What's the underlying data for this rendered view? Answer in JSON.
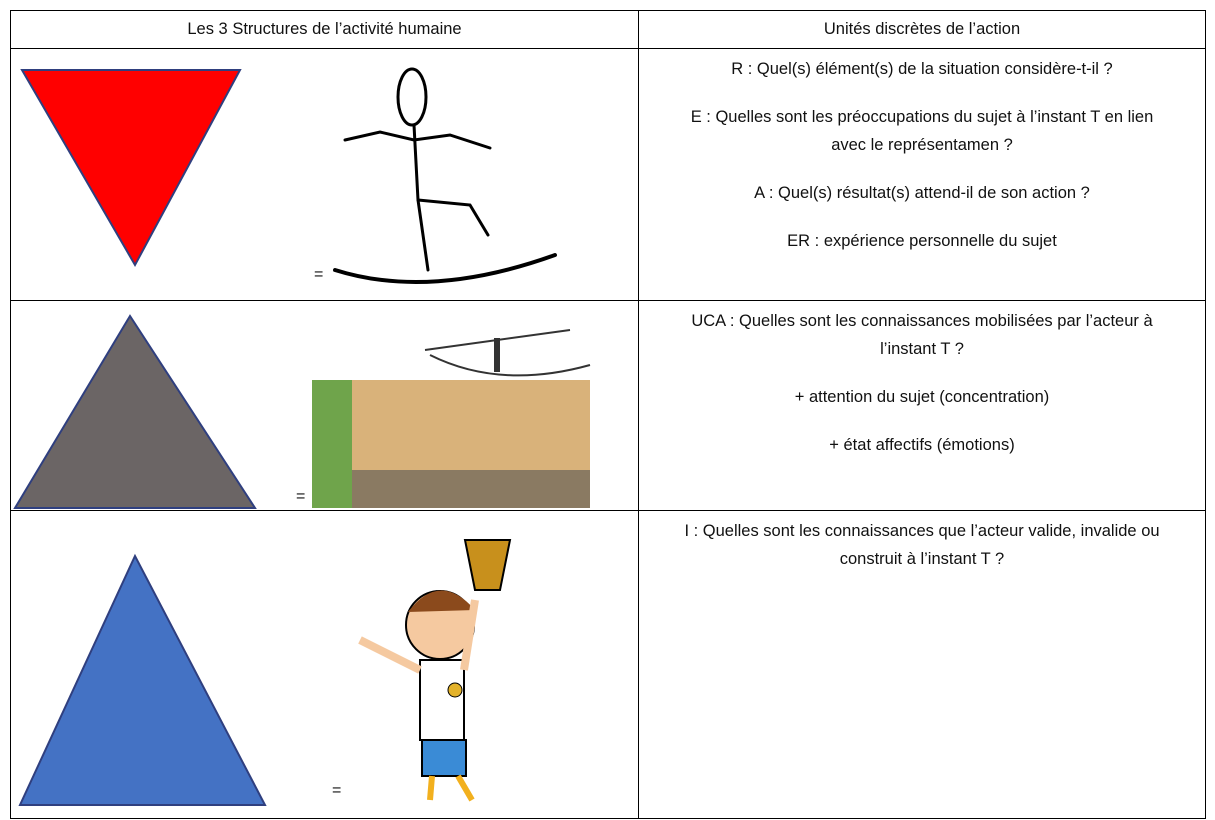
{
  "table": {
    "header": [
      "Les 3 Structures de l’activité humaine",
      "Unités discrètes de l’action"
    ],
    "rows": [
      {
        "symbol": "=",
        "lines": [
          "R :  Quel(s) élément(s) de la situation considère-t-il ?",
          "E :  Quelles sont les préoccupations du sujet à l’instant T en lien avec le représentamen ?",
          "A :  Quel(s) résultat(s) attend-il de son action ?",
          "ER :  expérience personnelle du sujet"
        ]
      },
      {
        "symbol": "=",
        "lines": [
          "UCA :  Quelles sont les connaissances mobilisées par l’acteur à l’instant T ?",
          "+ attention du sujet (concentration)",
          "+ état affectifs (émotions)"
        ]
      },
      {
        "symbol": "=",
        "lines": [
          "I :  Quelles sont les connaissances que l’acteur valide, invalide ou construit à l’instant T ?"
        ]
      }
    ]
  }
}
